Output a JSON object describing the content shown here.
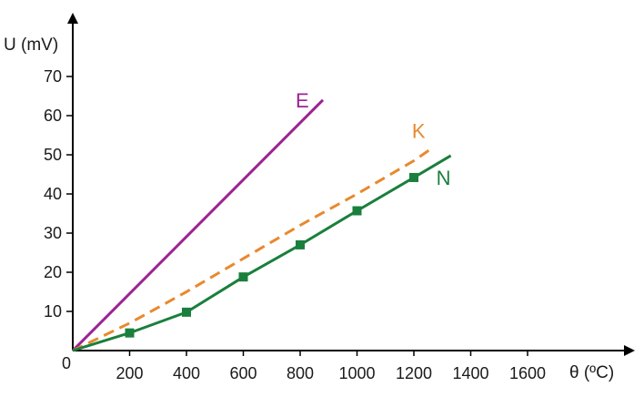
{
  "chart_data": {
    "type": "line",
    "xlabel": "θ (ºC)",
    "ylabel": "U (mV)",
    "xlim": [
      0,
      1700
    ],
    "ylim": [
      0,
      75
    ],
    "x_ticks": [
      200,
      400,
      600,
      800,
      1000,
      1200,
      1400,
      1600
    ],
    "y_ticks": [
      10,
      20,
      30,
      40,
      50,
      60,
      70
    ],
    "origin_label": "0",
    "grid": false,
    "series": [
      {
        "name": "E",
        "color": "#9b2393",
        "style": "solid",
        "markers": false,
        "points": [
          [
            0,
            0
          ],
          [
            880,
            64
          ]
        ]
      },
      {
        "name": "K",
        "color": "#e8892e",
        "style": "dashed",
        "markers": false,
        "points": [
          [
            0,
            0
          ],
          [
            200,
            7
          ],
          [
            400,
            15
          ],
          [
            600,
            23.5
          ],
          [
            800,
            32
          ],
          [
            1000,
            40
          ],
          [
            1200,
            48.5
          ],
          [
            1270,
            52
          ]
        ]
      },
      {
        "name": "N",
        "color": "#1a7f3c",
        "style": "solid",
        "markers": true,
        "marker_points": [
          [
            200,
            4.5
          ],
          [
            400,
            9.8
          ],
          [
            600,
            18.8
          ],
          [
            800,
            27
          ],
          [
            1000,
            35.7
          ],
          [
            1200,
            44.2
          ]
        ],
        "points": [
          [
            0,
            0
          ],
          [
            200,
            4.5
          ],
          [
            400,
            9.8
          ],
          [
            600,
            18.8
          ],
          [
            800,
            27
          ],
          [
            1000,
            35.7
          ],
          [
            1200,
            44.2
          ],
          [
            1330,
            49.8
          ]
        ]
      }
    ]
  }
}
